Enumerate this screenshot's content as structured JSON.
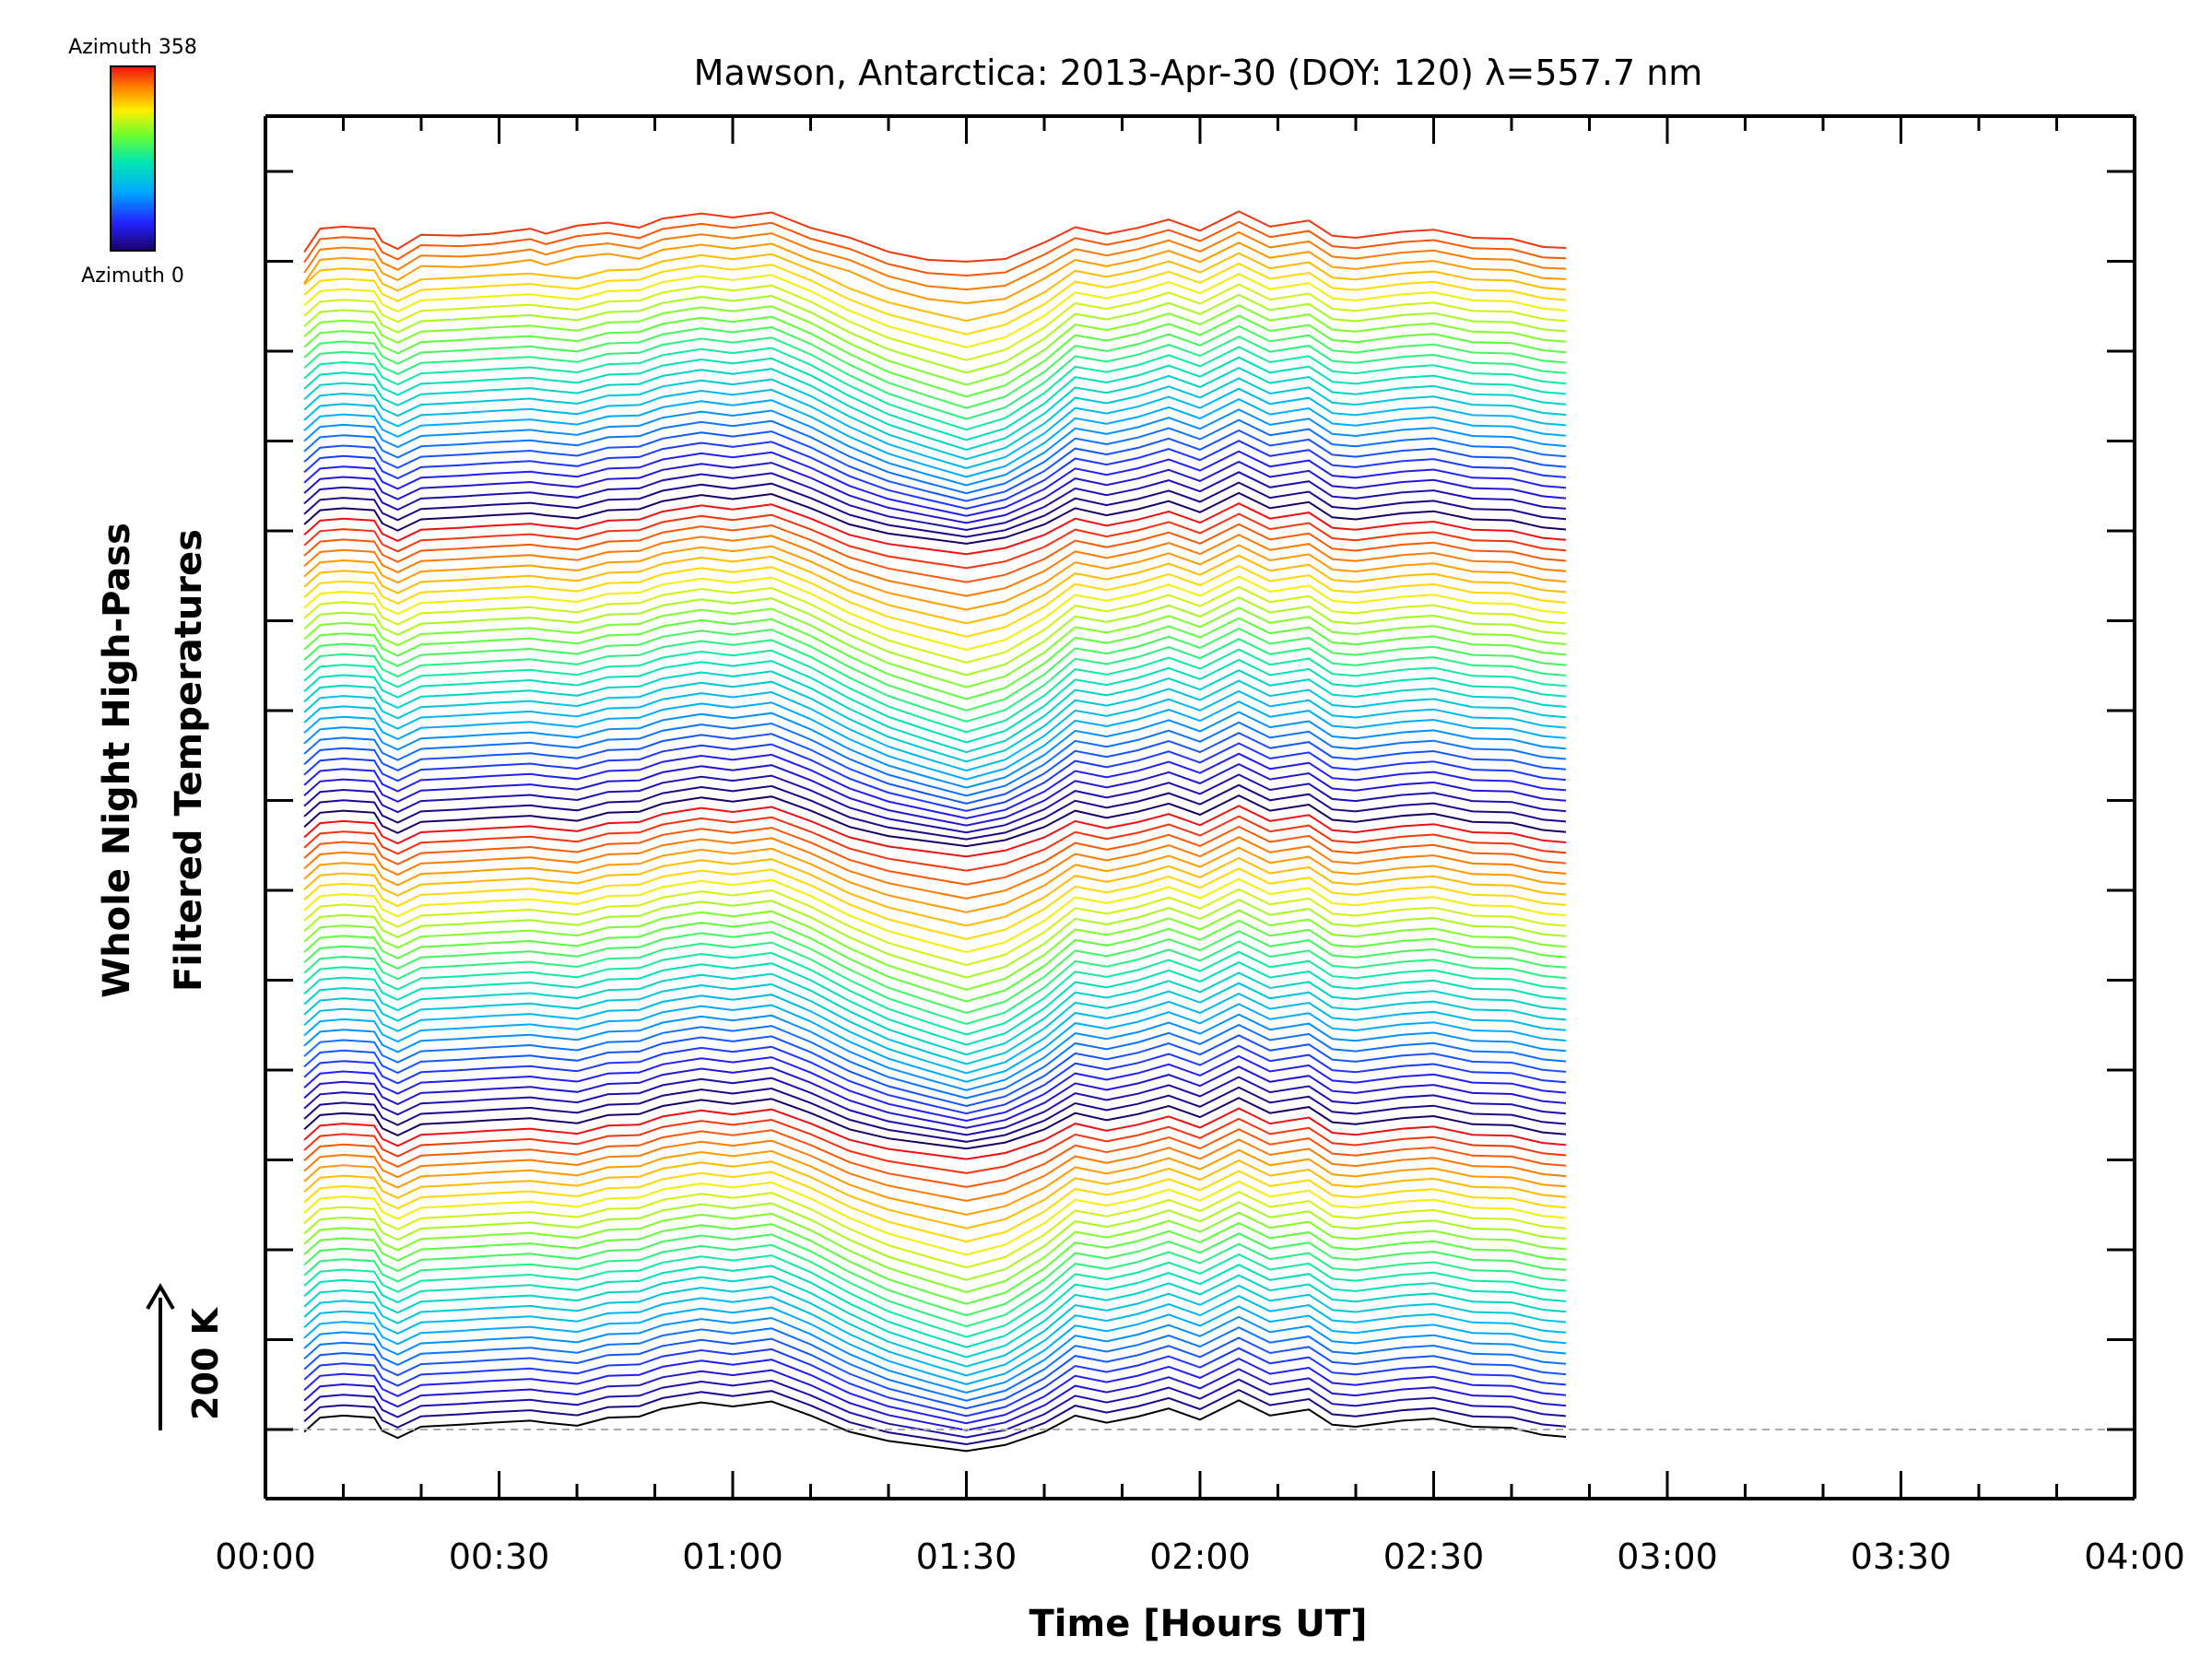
{
  "chart_data": {
    "type": "line",
    "title": "Mawson, Antarctica: 2013-Apr-30 (DOY: 120) λ=557.7 nm",
    "xlabel": "Time [Hours UT]",
    "ylabel_line1": "Whole Night High-Pass",
    "ylabel_line2": "Filtered Temperatures",
    "x_unit": "hours UT",
    "xlim": [
      0,
      4
    ],
    "x_ticks": [
      "00:00",
      "00:30",
      "01:00",
      "01:30",
      "02:00",
      "02:30",
      "03:00",
      "03:30",
      "04:00"
    ],
    "y_scale_label": "200 K",
    "y_scale_kelvin": 200,
    "colorbar": {
      "top_label": "Azimuth  358",
      "bottom_label": "Azimuth  0",
      "azimuth_min": 0,
      "azimuth_max": 358,
      "colormap": "rainbow"
    },
    "series_count": 115,
    "zone_ring_count": 4,
    "baseline": "dashed grey line at the first azimuth zone offset",
    "x": [
      0.083,
      0.117,
      0.167,
      0.233,
      0.25,
      0.283,
      0.333,
      0.417,
      0.483,
      0.567,
      0.6,
      0.667,
      0.733,
      0.8,
      0.85,
      0.933,
      1.0,
      1.083,
      1.167,
      1.25,
      1.333,
      1.417,
      1.5,
      1.583,
      1.667,
      1.733,
      1.8,
      1.867,
      1.933,
      2.0,
      2.083,
      2.15,
      2.233,
      2.283,
      2.333,
      2.433,
      2.5,
      2.583,
      2.667,
      2.733,
      2.783
    ],
    "common_shape": [
      -10,
      18,
      22,
      18,
      -8,
      -22,
      0,
      4,
      8,
      12,
      8,
      2,
      18,
      20,
      36,
      48,
      40,
      50,
      22,
      -10,
      -28,
      -38,
      -48,
      -36,
      -10,
      22,
      8,
      20,
      36,
      14,
      52,
      22,
      34,
      4,
      0,
      12,
      16,
      0,
      -2,
      -16,
      -20
    ],
    "top_shape": [
      -28,
      18,
      22,
      18,
      -8,
      -22,
      6,
      4,
      8,
      18,
      8,
      24,
      30,
      20,
      38,
      48,
      40,
      50,
      20,
      2,
      -24,
      -38,
      -40,
      -36,
      -6,
      22,
      8,
      20,
      36,
      14,
      52,
      22,
      34,
      4,
      0,
      12,
      16,
      0,
      -2,
      -18,
      -20
    ],
    "dip_shape": [
      0,
      0,
      0,
      0,
      0,
      0,
      0,
      0,
      0,
      0,
      0,
      0,
      0,
      0,
      0,
      0,
      0,
      0,
      6,
      16,
      36,
      54,
      70,
      58,
      32,
      10,
      6,
      4,
      0,
      0,
      0,
      0,
      0,
      0,
      0,
      0,
      0,
      0,
      0,
      0,
      0
    ]
  }
}
